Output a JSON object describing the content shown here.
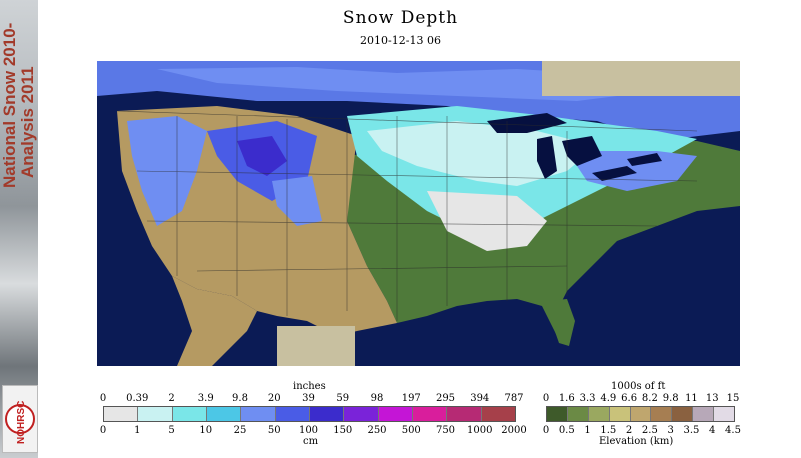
{
  "header": {
    "title": "Snow Depth",
    "subtitle": "2010-12-13 06"
  },
  "sidebar": {
    "line1": "National Snow 2010-",
    "line2": "Analysis 2011",
    "logo_text": "NOHRSC"
  },
  "snow_legend": {
    "unit_top": "inches",
    "unit_bottom": "cm",
    "inch_ticks": [
      "0",
      "0.39",
      "2",
      "3.9",
      "9.8",
      "20",
      "39",
      "59",
      "98",
      "197",
      "295",
      "394",
      "787"
    ],
    "cm_ticks": [
      "0",
      "1",
      "5",
      "10",
      "25",
      "50",
      "100",
      "150",
      "250",
      "500",
      "750",
      "1000",
      "2000"
    ],
    "colors": [
      "#e6e6e6",
      "#c9f2f2",
      "#7ae6e8",
      "#4cc7e6",
      "#6f8ef2",
      "#4a5ce6",
      "#3b2ccc",
      "#7a23d9",
      "#c415d6",
      "#d91e9c",
      "#b62a74",
      "#a6404a"
    ]
  },
  "elevation_legend": {
    "unit_top": "1000s of ft",
    "unit_bottom": "Elevation (km)",
    "ft_ticks": [
      "0",
      "1.6",
      "3.3",
      "4.9",
      "6.6",
      "8.2",
      "9.8",
      "11",
      "13",
      "15"
    ],
    "km_ticks": [
      "0",
      "0.5",
      "1",
      "1.5",
      "2",
      "2.5",
      "3",
      "3.5",
      "4",
      "4.5"
    ],
    "colors": [
      "#3e5a2a",
      "#6b8a45",
      "#9aa860",
      "#c9c27a",
      "#bfa66e",
      "#a67e52",
      "#8a6140",
      "#b7a8b8",
      "#e2dbe6"
    ]
  },
  "map": {
    "colors": {
      "ocean": "#0b1b55",
      "land_green": "#4f7a3a",
      "land_tan": "#b59a62",
      "no_data": "#c8c0a0",
      "snow_light": "#c9f2f2",
      "snow_cyan": "#7ae6e8",
      "snow_blue": "#6f8ef2",
      "snow_purple": "#3b2ccc",
      "lakes": "#061040"
    }
  }
}
